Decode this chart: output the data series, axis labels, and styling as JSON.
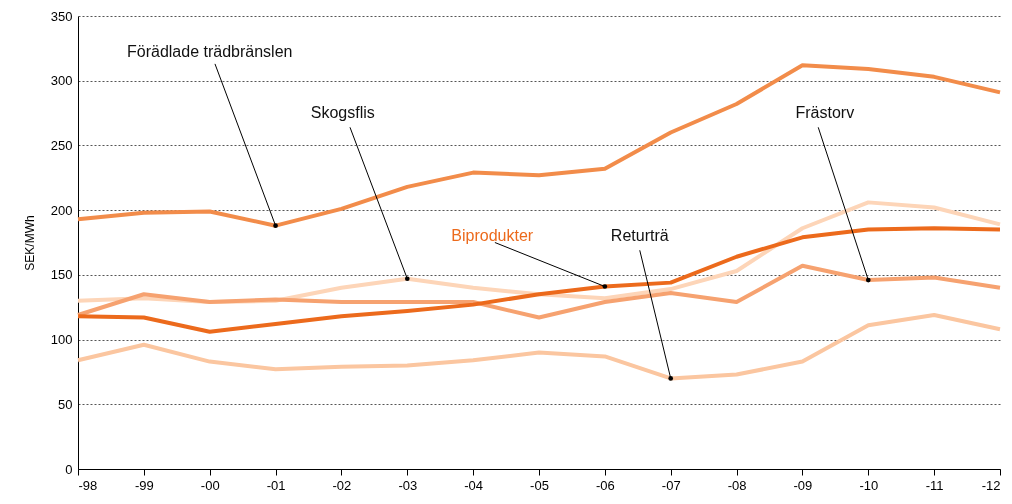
{
  "chart_data": {
    "type": "line",
    "ylabel": "SEK/MWh",
    "categories": [
      "-98",
      "-99",
      "-00",
      "-01",
      "-02",
      "-03",
      "-04",
      "-05",
      "-06",
      "-07",
      "-08",
      "-09",
      "-10",
      "-11",
      "-12"
    ],
    "series": [
      {
        "name": "Returträ",
        "color": "#fbc6a0",
        "values": [
          84,
          96,
          83,
          77,
          79,
          80,
          84,
          90,
          87,
          70,
          73,
          83,
          111,
          119,
          108
        ]
      },
      {
        "name": "Skogsflis",
        "color": "#fdd5b8",
        "values": [
          130,
          132,
          129,
          130,
          140,
          147,
          140,
          135,
          132,
          139,
          153,
          186,
          206,
          202,
          189
        ]
      },
      {
        "name": "Frästorv",
        "color": "#f6a270",
        "values": [
          119,
          135,
          129,
          131,
          129,
          129,
          129,
          117,
          129,
          136,
          129,
          157,
          146,
          148,
          140
        ]
      },
      {
        "name": "Förädlade trädbränslen",
        "color": "#f28c4a",
        "values": [
          193,
          198,
          199,
          188,
          201,
          218,
          229,
          227,
          232,
          260,
          282,
          312,
          309,
          303,
          291
        ]
      },
      {
        "name": "Biprodukter",
        "color": "#ec6a1c",
        "values": [
          118,
          117,
          106,
          112,
          118,
          122,
          127,
          135,
          141,
          144,
          164,
          179,
          185,
          186,
          185
        ]
      }
    ],
    "ylim": [
      0,
      350
    ],
    "yticks": [
      0,
      50,
      100,
      150,
      200,
      250,
      300,
      350
    ],
    "grid": "y",
    "marker": "none",
    "line_style": "solid"
  }
}
